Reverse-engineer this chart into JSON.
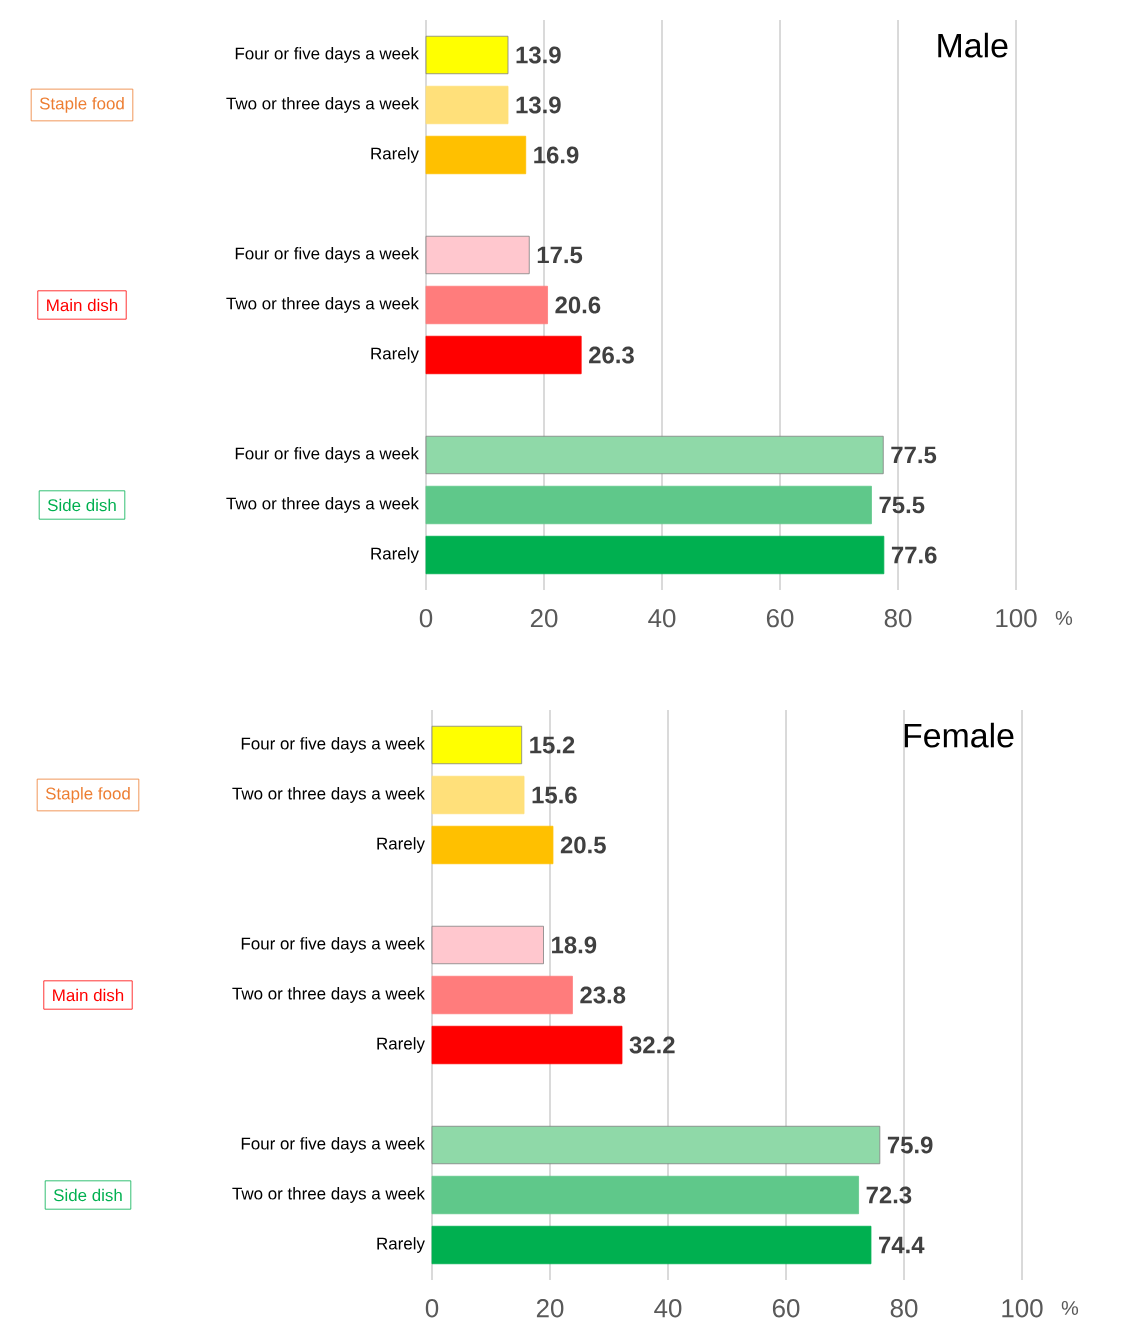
{
  "chart_data": [
    {
      "type": "bar",
      "orientation": "horizontal",
      "title": "Male",
      "categories": [
        "Four or five days a week",
        "Two or three days a week",
        "Rarely",
        "Four or five days a week",
        "Two or three days a week",
        "Rarely",
        "Four or five days a week",
        "Two or three days a week",
        "Rarely"
      ],
      "values": [
        13.9,
        13.9,
        16.9,
        17.5,
        20.6,
        26.3,
        77.5,
        75.5,
        77.6
      ],
      "colors": [
        "#ffff00",
        "#ffe07a",
        "#ffc000",
        "#ffc7ce",
        "#ff7c7c",
        "#ff0000",
        "#8fd9a8",
        "#5fc88a",
        "#00b050"
      ],
      "xlim": [
        0,
        100
      ],
      "xticks": [
        0,
        20,
        40,
        60,
        80,
        100
      ],
      "grid": "x",
      "data_labels": true,
      "annotations": [
        "Staple food",
        "Main dish",
        "Side dish",
        "%"
      ]
    },
    {
      "type": "bar",
      "orientation": "horizontal",
      "title": "Female",
      "categories": [
        "Four or five days a week",
        "Two or three days a week",
        "Rarely",
        "Four or five days a week",
        "Two or three days a week",
        "Rarely",
        "Four or five days a week",
        "Two or three days a week",
        "Rarely"
      ],
      "values": [
        15.2,
        15.6,
        20.5,
        18.9,
        23.8,
        32.2,
        75.9,
        72.3,
        74.4
      ],
      "colors": [
        "#ffff00",
        "#ffe07a",
        "#ffc000",
        "#ffc7ce",
        "#ff7c7c",
        "#ff0000",
        "#8fd9a8",
        "#5fc88a",
        "#00b050"
      ],
      "xlim": [
        0,
        100
      ],
      "xticks": [
        0,
        20,
        40,
        60,
        80,
        100
      ],
      "grid": "x",
      "data_labels": true,
      "annotations": [
        "Staple food",
        "Main dish",
        "Side dish",
        "%"
      ]
    }
  ]
}
